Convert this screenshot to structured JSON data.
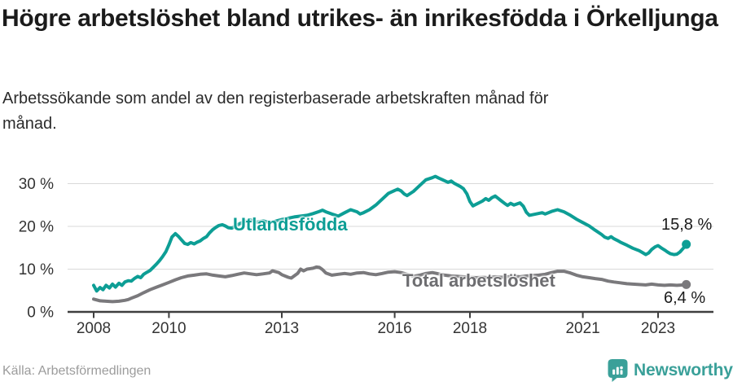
{
  "header": {
    "title": "Högre arbetslöshet bland utrikes- än inrikesfödda i Örkelljunga",
    "subtitle": "Arbetssökande som andel av den registerbaserade arbetskraften månad för månad."
  },
  "footer": {
    "source": "Källa: Arbetsförmedlingen",
    "brand": "Newsworthy"
  },
  "colors": {
    "teal": "#0d9e95",
    "gray": "#7a797c",
    "grid": "#d9d9d9",
    "axis": "#3f3f3f",
    "tick_text": "#333333",
    "brand_teal": "#3aa099"
  },
  "chart_data": {
    "type": "line",
    "title": "Högre arbetslöshet bland utrikes- än inrikesfödda i Örkelljunga",
    "subtitle": "Arbetssökande som andel av den registerbaserade arbetskraften månad för månad.",
    "xlabel": "",
    "ylabel": "",
    "grid": true,
    "legend_position": "inline-labels",
    "x_range": [
      2008.0,
      2023.75
    ],
    "ylim": [
      0,
      33
    ],
    "x_ticks": [
      {
        "t": 2008,
        "label": "2008"
      },
      {
        "t": 2010,
        "label": "2010"
      },
      {
        "t": 2013,
        "label": "2013"
      },
      {
        "t": 2016,
        "label": "2016"
      },
      {
        "t": 2018,
        "label": "2018"
      },
      {
        "t": 2021,
        "label": "2021"
      },
      {
        "t": 2023,
        "label": "2023"
      }
    ],
    "y_ticks": [
      {
        "v": 0,
        "label": "0 %"
      },
      {
        "v": 10,
        "label": "10 %"
      },
      {
        "v": 20,
        "label": "20 %"
      },
      {
        "v": 30,
        "label": "30 %"
      }
    ],
    "series": [
      {
        "name": "Utlandsfödda",
        "color": "#0d9e95",
        "end_label": "15,8 %",
        "end_value": 15.8,
        "points": [
          [
            2008.0,
            6.2
          ],
          [
            2008.08,
            4.9
          ],
          [
            2008.17,
            5.7
          ],
          [
            2008.25,
            5.2
          ],
          [
            2008.33,
            6.2
          ],
          [
            2008.42,
            5.6
          ],
          [
            2008.5,
            6.5
          ],
          [
            2008.58,
            5.8
          ],
          [
            2008.67,
            6.7
          ],
          [
            2008.75,
            6.2
          ],
          [
            2008.83,
            7.0
          ],
          [
            2008.92,
            7.3
          ],
          [
            2009.0,
            7.2
          ],
          [
            2009.08,
            7.8
          ],
          [
            2009.17,
            8.3
          ],
          [
            2009.25,
            8.0
          ],
          [
            2009.33,
            8.8
          ],
          [
            2009.42,
            9.3
          ],
          [
            2009.5,
            9.7
          ],
          [
            2009.58,
            10.4
          ],
          [
            2009.67,
            11.2
          ],
          [
            2009.75,
            12.0
          ],
          [
            2009.83,
            12.9
          ],
          [
            2009.92,
            14.1
          ],
          [
            2010.0,
            15.7
          ],
          [
            2010.08,
            17.5
          ],
          [
            2010.17,
            18.3
          ],
          [
            2010.25,
            17.7
          ],
          [
            2010.33,
            16.9
          ],
          [
            2010.42,
            16.0
          ],
          [
            2010.5,
            15.8
          ],
          [
            2010.58,
            16.2
          ],
          [
            2010.67,
            15.9
          ],
          [
            2010.75,
            16.3
          ],
          [
            2010.83,
            16.6
          ],
          [
            2010.92,
            17.2
          ],
          [
            2011.0,
            17.6
          ],
          [
            2011.08,
            18.5
          ],
          [
            2011.17,
            19.3
          ],
          [
            2011.25,
            19.8
          ],
          [
            2011.33,
            20.2
          ],
          [
            2011.42,
            20.4
          ],
          [
            2011.5,
            20.1
          ],
          [
            2011.58,
            19.7
          ],
          [
            2011.67,
            19.6
          ],
          [
            2011.75,
            20.0
          ],
          [
            2011.83,
            20.4
          ],
          [
            2011.92,
            20.8
          ],
          [
            2012.0,
            21.1
          ],
          [
            2012.17,
            21.5
          ],
          [
            2012.33,
            21.0
          ],
          [
            2012.5,
            21.3
          ],
          [
            2012.67,
            20.9
          ],
          [
            2012.83,
            21.2
          ],
          [
            2013.0,
            21.6
          ],
          [
            2013.17,
            21.9
          ],
          [
            2013.33,
            22.2
          ],
          [
            2013.5,
            22.4
          ],
          [
            2013.67,
            22.6
          ],
          [
            2013.83,
            23.0
          ],
          [
            2014.0,
            23.5
          ],
          [
            2014.08,
            23.8
          ],
          [
            2014.17,
            23.4
          ],
          [
            2014.33,
            22.9
          ],
          [
            2014.5,
            22.4
          ],
          [
            2014.67,
            23.2
          ],
          [
            2014.83,
            23.9
          ],
          [
            2015.0,
            23.4
          ],
          [
            2015.08,
            22.9
          ],
          [
            2015.17,
            23.2
          ],
          [
            2015.33,
            23.9
          ],
          [
            2015.5,
            25.0
          ],
          [
            2015.67,
            26.4
          ],
          [
            2015.83,
            27.7
          ],
          [
            2016.0,
            28.4
          ],
          [
            2016.08,
            28.7
          ],
          [
            2016.17,
            28.3
          ],
          [
            2016.25,
            27.6
          ],
          [
            2016.33,
            27.2
          ],
          [
            2016.5,
            28.2
          ],
          [
            2016.67,
            29.6
          ],
          [
            2016.83,
            30.9
          ],
          [
            2017.0,
            31.4
          ],
          [
            2017.08,
            31.7
          ],
          [
            2017.17,
            31.3
          ],
          [
            2017.25,
            31.0
          ],
          [
            2017.42,
            30.3
          ],
          [
            2017.5,
            30.6
          ],
          [
            2017.58,
            30.1
          ],
          [
            2017.75,
            29.3
          ],
          [
            2017.83,
            28.8
          ],
          [
            2017.92,
            27.6
          ],
          [
            2018.0,
            25.8
          ],
          [
            2018.08,
            24.8
          ],
          [
            2018.17,
            25.2
          ],
          [
            2018.33,
            25.9
          ],
          [
            2018.42,
            26.5
          ],
          [
            2018.5,
            26.1
          ],
          [
            2018.58,
            26.7
          ],
          [
            2018.67,
            27.1
          ],
          [
            2018.83,
            26.0
          ],
          [
            2018.92,
            25.4
          ],
          [
            2019.0,
            24.9
          ],
          [
            2019.08,
            25.4
          ],
          [
            2019.17,
            25.0
          ],
          [
            2019.33,
            25.5
          ],
          [
            2019.42,
            24.7
          ],
          [
            2019.5,
            23.3
          ],
          [
            2019.58,
            22.6
          ],
          [
            2019.75,
            22.9
          ],
          [
            2019.92,
            23.2
          ],
          [
            2020.0,
            22.9
          ],
          [
            2020.17,
            23.5
          ],
          [
            2020.33,
            23.9
          ],
          [
            2020.5,
            23.4
          ],
          [
            2020.67,
            22.6
          ],
          [
            2020.83,
            21.7
          ],
          [
            2021.0,
            20.9
          ],
          [
            2021.17,
            20.1
          ],
          [
            2021.33,
            19.1
          ],
          [
            2021.5,
            18.1
          ],
          [
            2021.58,
            17.5
          ],
          [
            2021.67,
            17.2
          ],
          [
            2021.75,
            17.6
          ],
          [
            2021.83,
            17.1
          ],
          [
            2021.92,
            16.7
          ],
          [
            2022.0,
            16.3
          ],
          [
            2022.17,
            15.6
          ],
          [
            2022.33,
            14.9
          ],
          [
            2022.5,
            14.3
          ],
          [
            2022.58,
            13.9
          ],
          [
            2022.67,
            13.4
          ],
          [
            2022.75,
            13.8
          ],
          [
            2022.83,
            14.6
          ],
          [
            2022.92,
            15.2
          ],
          [
            2023.0,
            15.5
          ],
          [
            2023.08,
            15.0
          ],
          [
            2023.17,
            14.5
          ],
          [
            2023.25,
            14.0
          ],
          [
            2023.33,
            13.6
          ],
          [
            2023.42,
            13.4
          ],
          [
            2023.5,
            13.5
          ],
          [
            2023.58,
            14.0
          ],
          [
            2023.67,
            14.9
          ],
          [
            2023.75,
            15.8
          ]
        ]
      },
      {
        "name": "Total arbetslöshet",
        "color": "#7a797c",
        "end_label": "6,4 %",
        "end_value": 6.4,
        "points": [
          [
            2008.0,
            3.0
          ],
          [
            2008.08,
            2.8
          ],
          [
            2008.17,
            2.6
          ],
          [
            2008.33,
            2.5
          ],
          [
            2008.5,
            2.4
          ],
          [
            2008.67,
            2.5
          ],
          [
            2008.83,
            2.7
          ],
          [
            2008.92,
            2.9
          ],
          [
            2009.0,
            3.2
          ],
          [
            2009.17,
            3.8
          ],
          [
            2009.33,
            4.5
          ],
          [
            2009.5,
            5.2
          ],
          [
            2009.67,
            5.8
          ],
          [
            2009.83,
            6.3
          ],
          [
            2010.0,
            6.9
          ],
          [
            2010.17,
            7.5
          ],
          [
            2010.33,
            8.0
          ],
          [
            2010.5,
            8.4
          ],
          [
            2010.67,
            8.6
          ],
          [
            2010.83,
            8.8
          ],
          [
            2011.0,
            8.9
          ],
          [
            2011.17,
            8.6
          ],
          [
            2011.33,
            8.4
          ],
          [
            2011.5,
            8.2
          ],
          [
            2011.67,
            8.5
          ],
          [
            2011.83,
            8.8
          ],
          [
            2012.0,
            9.1
          ],
          [
            2012.17,
            8.9
          ],
          [
            2012.33,
            8.7
          ],
          [
            2012.5,
            8.9
          ],
          [
            2012.67,
            9.1
          ],
          [
            2012.75,
            9.6
          ],
          [
            2012.92,
            9.2
          ],
          [
            2013.0,
            8.7
          ],
          [
            2013.17,
            8.1
          ],
          [
            2013.25,
            7.9
          ],
          [
            2013.42,
            9.0
          ],
          [
            2013.5,
            10.0
          ],
          [
            2013.58,
            9.6
          ],
          [
            2013.67,
            10.0
          ],
          [
            2013.83,
            10.2
          ],
          [
            2013.92,
            10.5
          ],
          [
            2014.0,
            10.4
          ],
          [
            2014.08,
            9.9
          ],
          [
            2014.17,
            9.1
          ],
          [
            2014.33,
            8.6
          ],
          [
            2014.5,
            8.8
          ],
          [
            2014.67,
            9.0
          ],
          [
            2014.83,
            8.8
          ],
          [
            2015.0,
            9.1
          ],
          [
            2015.17,
            9.2
          ],
          [
            2015.33,
            8.9
          ],
          [
            2015.5,
            8.7
          ],
          [
            2015.67,
            9.0
          ],
          [
            2015.83,
            9.3
          ],
          [
            2016.0,
            9.4
          ],
          [
            2016.17,
            9.2
          ],
          [
            2016.33,
            8.8
          ],
          [
            2016.5,
            8.3
          ],
          [
            2016.67,
            8.6
          ],
          [
            2016.83,
            9.0
          ],
          [
            2017.0,
            9.2
          ],
          [
            2017.17,
            8.9
          ],
          [
            2017.33,
            8.6
          ],
          [
            2017.5,
            8.4
          ],
          [
            2017.67,
            8.3
          ],
          [
            2017.83,
            8.2
          ],
          [
            2018.0,
            8.1
          ],
          [
            2018.17,
            8.0
          ],
          [
            2018.33,
            8.1
          ],
          [
            2018.5,
            8.0
          ],
          [
            2018.67,
            8.2
          ],
          [
            2018.83,
            8.1
          ],
          [
            2019.0,
            8.2
          ],
          [
            2019.17,
            8.3
          ],
          [
            2019.33,
            8.2
          ],
          [
            2019.5,
            8.4
          ],
          [
            2019.67,
            8.5
          ],
          [
            2019.83,
            8.6
          ],
          [
            2020.0,
            8.8
          ],
          [
            2020.17,
            9.2
          ],
          [
            2020.33,
            9.5
          ],
          [
            2020.5,
            9.5
          ],
          [
            2020.67,
            9.1
          ],
          [
            2020.83,
            8.6
          ],
          [
            2021.0,
            8.2
          ],
          [
            2021.17,
            8.0
          ],
          [
            2021.33,
            7.8
          ],
          [
            2021.5,
            7.6
          ],
          [
            2021.67,
            7.2
          ],
          [
            2021.83,
            7.0
          ],
          [
            2022.0,
            6.8
          ],
          [
            2022.17,
            6.6
          ],
          [
            2022.33,
            6.5
          ],
          [
            2022.5,
            6.4
          ],
          [
            2022.67,
            6.3
          ],
          [
            2022.83,
            6.5
          ],
          [
            2023.0,
            6.3
          ],
          [
            2023.17,
            6.2
          ],
          [
            2023.33,
            6.3
          ],
          [
            2023.5,
            6.2
          ],
          [
            2023.67,
            6.3
          ],
          [
            2023.75,
            6.4
          ]
        ]
      }
    ]
  }
}
